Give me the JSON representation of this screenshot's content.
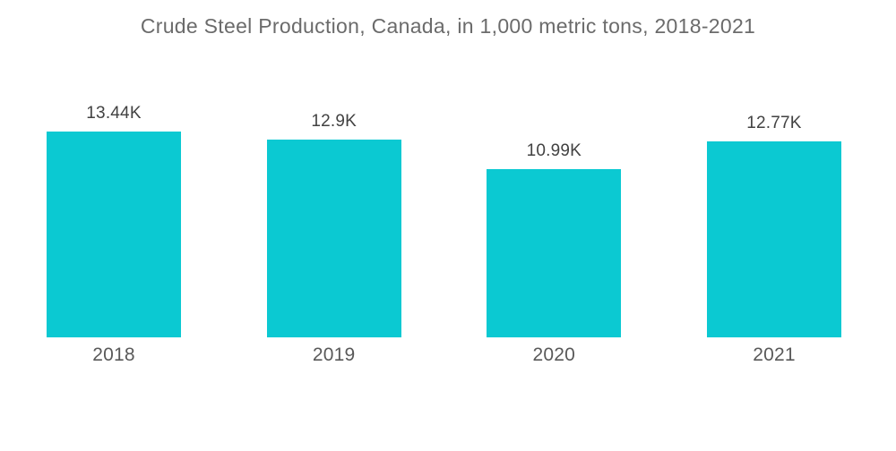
{
  "chart_data": {
    "type": "bar",
    "title": "Crude Steel Production, Canada, in 1,000 metric tons, 2018-2021",
    "categories": [
      "2018",
      "2019",
      "2020",
      "2021"
    ],
    "values": [
      13440,
      12900,
      10990,
      12770
    ],
    "value_labels": [
      "13.44K",
      "12.9K",
      "10.99K",
      "12.77K"
    ],
    "ylabel": "",
    "xlabel": "",
    "ylim": [
      0,
      13440
    ],
    "grid": false,
    "legend": false,
    "background_color": "#ffffff",
    "bar_color": "#0bc9d2",
    "title_color": "#6b6b6b",
    "value_label_color": "#424242",
    "category_label_color": "#595959"
  }
}
